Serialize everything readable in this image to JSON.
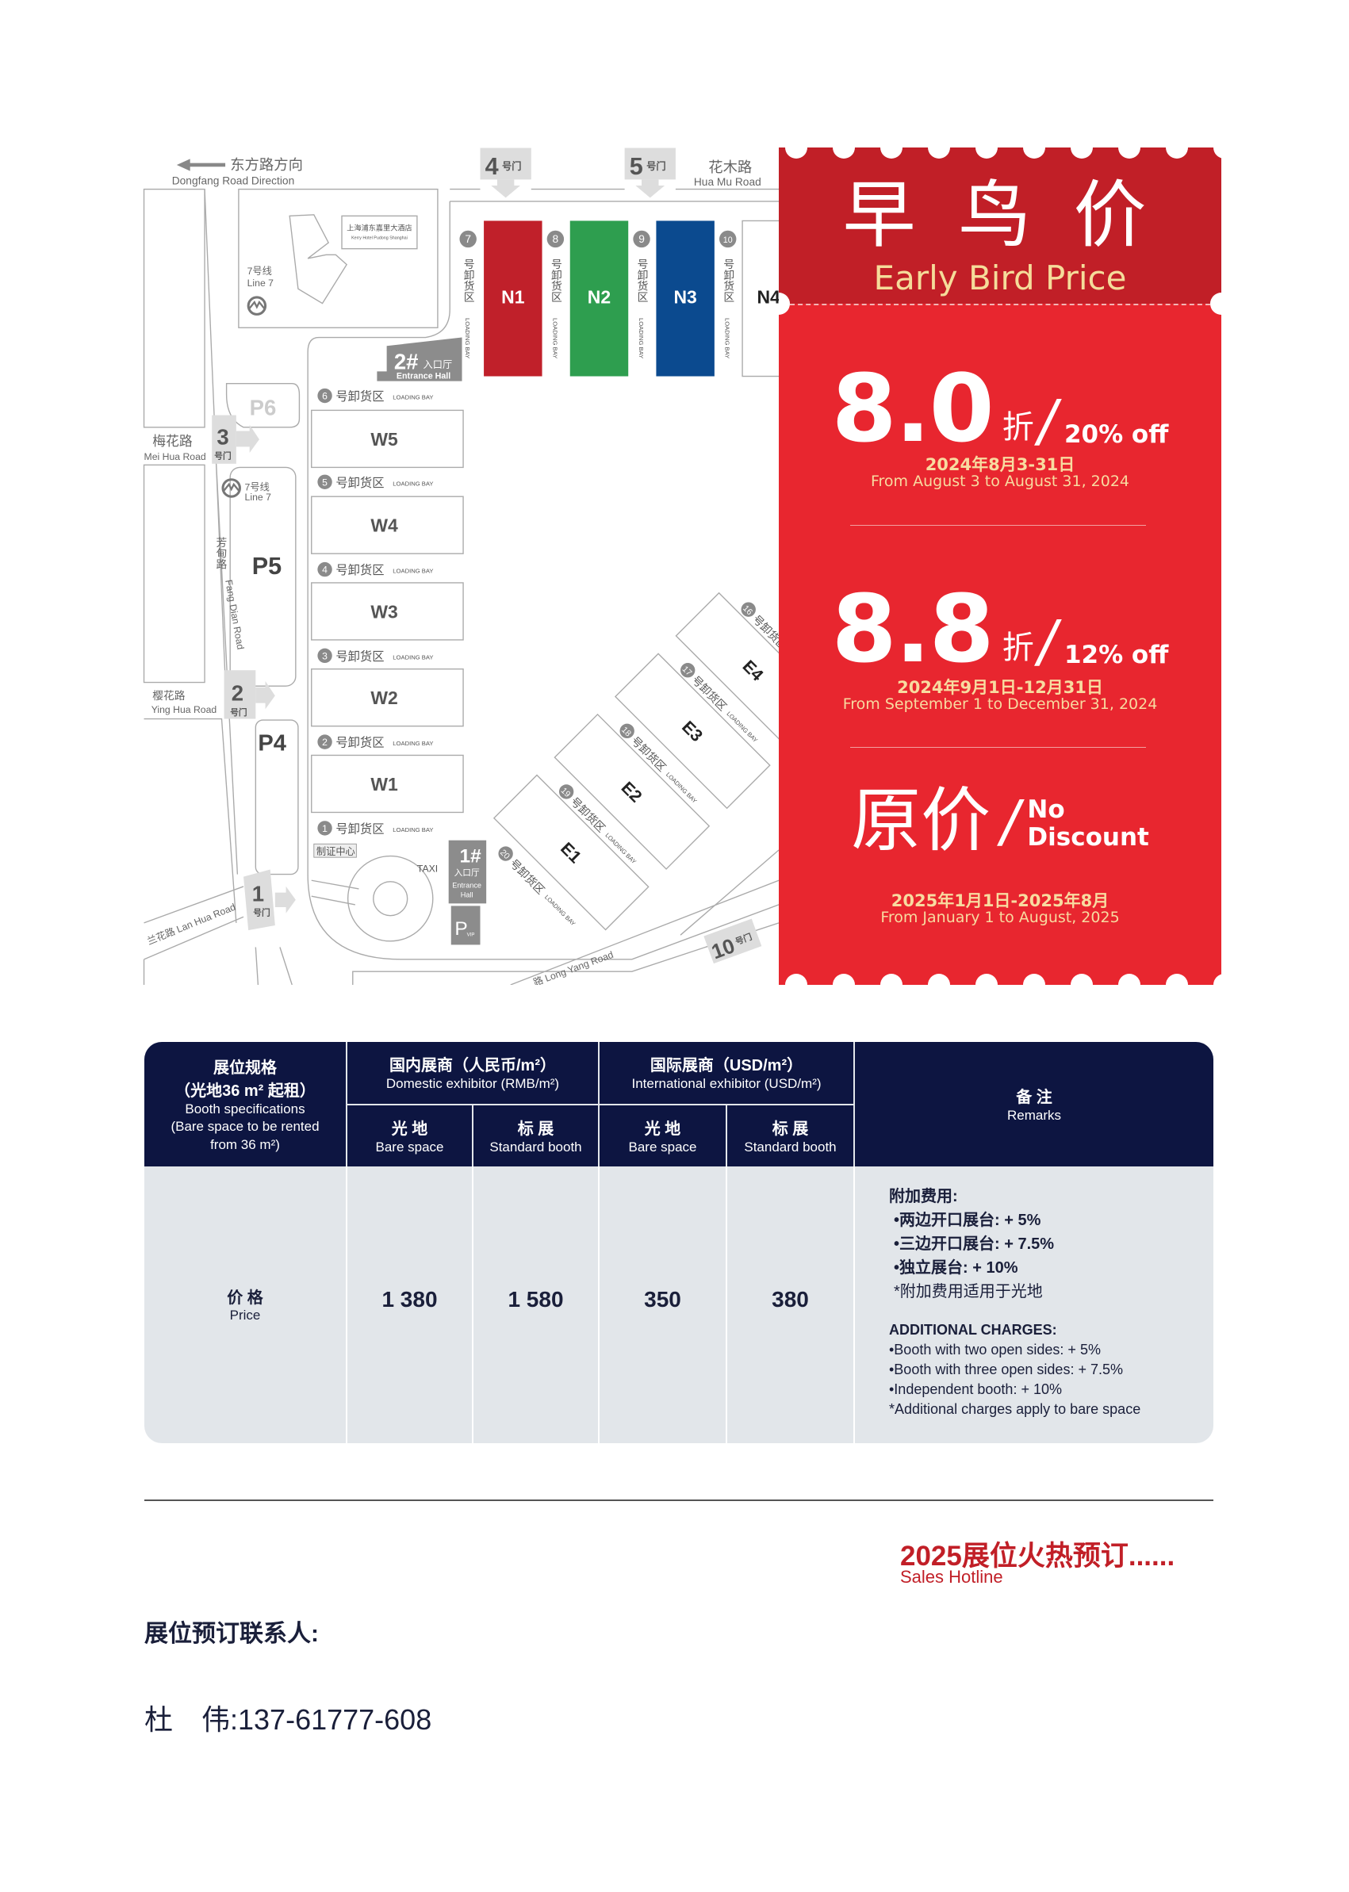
{
  "map": {
    "dongfang_cn": "东方路方向",
    "dongfang_en": "Dongfang Road Direction",
    "huamu_cn": "花木路",
    "huamu_en": "Hua Mu Road",
    "meihua_cn": "梅花路",
    "meihua_en": "Mei Hua Road",
    "yinghua_cn": "樱花路",
    "yinghua_en": "Ying Hua Road",
    "lanhua": "兰花路 Lan Hua Road",
    "fangdian_cn": "芳甸路",
    "fangdian_en": "Fang Dian Road",
    "longyang": "路 Long Yang Road",
    "hotel_cn": "上海浦东嘉里大酒店",
    "hotel_en": "Kerry Hotel Pudong Shanghai",
    "line7_cn": "7号线",
    "line7_en": "Line 7",
    "gate_suffix": "号门",
    "gates": [
      "1",
      "2",
      "3",
      "4",
      "5",
      "10"
    ],
    "parking": [
      "P4",
      "P5",
      "P6"
    ],
    "halls_north": [
      "N1",
      "N2",
      "N3",
      "N4"
    ],
    "halls_west": [
      "W5",
      "W4",
      "W3",
      "W2",
      "W1"
    ],
    "halls_east": [
      "E1",
      "E2",
      "E3",
      "E4"
    ],
    "hall_colors": {
      "N1": "#c0202a",
      "N2": "#2e9e4f",
      "N3": "#0b4a8f"
    },
    "bay_cn": "号卸货区",
    "bay_en": "LOADING BAY",
    "bays_north": [
      "7",
      "8",
      "9",
      "10"
    ],
    "bays_west": [
      "6",
      "5",
      "4",
      "3",
      "2",
      "1"
    ],
    "bays_east": [
      "16",
      "17",
      "18",
      "19",
      "20"
    ],
    "entrance2_num": "2#",
    "entrance_cn": "入口厅",
    "entrance_en": "Entrance Hall",
    "entrance1_num": "1#",
    "entrance_en_1": "Entrance",
    "entrance_en_2": "Hall",
    "badge_center": "制证中心",
    "taxi": "TAXI",
    "pvip_p": "P",
    "pvip_sub": "VIP"
  },
  "promo": {
    "title_cn": "早 鸟 价",
    "title_en": "Early Bird Price",
    "tiers": [
      {
        "big": "8.0",
        "unit": "折",
        "off": "20% off",
        "date_cn": "2024年8月3-31日",
        "date_en": "From August 3 to August 31, 2024"
      },
      {
        "big": "8.8",
        "unit": "折",
        "off": "12% off",
        "date_cn": "2024年9月1日-12月31日",
        "date_en": "From September 1 to December 31, 2024"
      },
      {
        "big": "原价",
        "off_1": "No",
        "off_2": "Discount",
        "date_cn": "2025年1月1日-2025年8月",
        "date_en": "From January 1 to August, 2025"
      }
    ],
    "colors": {
      "band": "#c11f27",
      "panel": "#e8262f",
      "accent_text": "#f8dba0"
    }
  },
  "table": {
    "spec_cn_1": "展位规格",
    "spec_cn_2": "（光地36 m² 起租）",
    "spec_en_1": "Booth specifications",
    "spec_en_2": "(Bare space to be rented",
    "spec_en_3": "from 36 m²)",
    "domestic_cn": "国内展商（人民币/m²）",
    "domestic_en": "Domestic exhibitor (RMB/m²)",
    "intl_cn": "国际展商（USD/m²）",
    "intl_en": "International exhibitor (USD/m²)",
    "sub": [
      {
        "cn": "光 地",
        "en": "Bare space"
      },
      {
        "cn": "标 展",
        "en": "Standard booth"
      },
      {
        "cn": "光 地",
        "en": "Bare space"
      },
      {
        "cn": "标 展",
        "en": "Standard booth"
      }
    ],
    "remarks_cn": "备 注",
    "remarks_en": "Remarks",
    "row_label_cn": "价 格",
    "row_label_en": "Price",
    "prices": [
      "1 380",
      "1 580",
      "350",
      "380"
    ],
    "remarks": {
      "cn_title": "附加费用:",
      "cn_items": [
        "•两边开口展台: + 5%",
        "•三边开口展台: + 7.5%",
        "•独立展台: + 10%",
        "*附加费用适用于光地"
      ],
      "en_title": "ADDITIONAL CHARGES:",
      "en_items": [
        "•Booth with two open sides: + 5%",
        "•Booth with three open sides: + 7.5%",
        "•Independent booth: + 10%",
        "*Additional charges apply to bare space"
      ]
    },
    "colors": {
      "header": "#0d1541",
      "body": "#e2e6ea"
    }
  },
  "footer": {
    "hotline_cn": "2025展位火热预订......",
    "hotline_en": "Sales Hotline",
    "contact_label": "展位预订联系人:",
    "contact_name": "杜　伟:",
    "contact_phone": "137-61777-608"
  }
}
